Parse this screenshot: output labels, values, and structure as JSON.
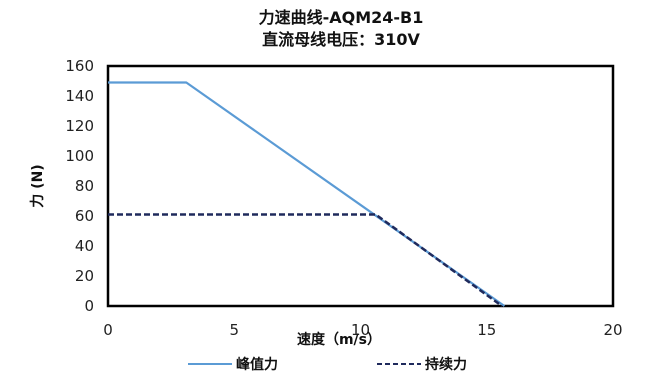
{
  "chart_data": {
    "type": "line",
    "title": "力速曲线-AQM24-B1",
    "subtitle": "直流母线电压：310V",
    "xlabel": "速度（m/s）",
    "ylabel": "力 (N)",
    "xlim": [
      0,
      20
    ],
    "ylim": [
      0,
      160
    ],
    "x_ticks": [
      "0",
      "5",
      "10",
      "15",
      "20"
    ],
    "y_ticks": [
      "0",
      "20",
      "40",
      "60",
      "80",
      "100",
      "120",
      "140",
      "160"
    ],
    "grid": false,
    "legend_position": "bottom",
    "series": [
      {
        "name": "峰值力",
        "style": "solid",
        "color": "#5b9bd5",
        "x": [
          0,
          3.1,
          15.7
        ],
        "y": [
          149,
          149,
          0
        ]
      },
      {
        "name": "持续力",
        "style": "dashed",
        "color": "#1f2a5c",
        "x": [
          0,
          10.6,
          15.6
        ],
        "y": [
          61,
          61,
          0
        ]
      }
    ]
  }
}
